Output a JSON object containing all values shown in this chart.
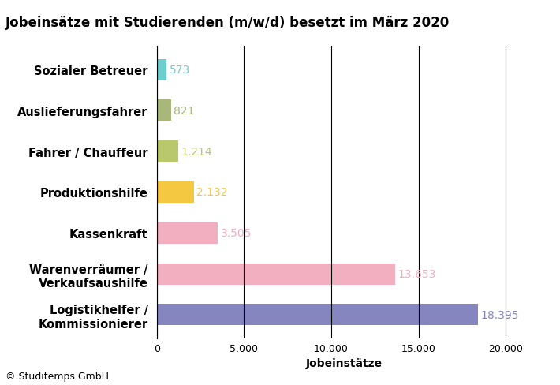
{
  "title": "Jobeinsätze mit Studierenden (m/w/d) besetzt im März 2020",
  "categories": [
    "Logistikhelfer /\nKommissionierer",
    "Warenverräumer /\nVerkaufsaushilfe",
    "Kassenkraft",
    "Produktionshilfe",
    "Fahrer / Chauffeur",
    "Auslieferungsfahrer",
    "Sozialer Betreuer"
  ],
  "values": [
    18395,
    13653,
    3505,
    2132,
    1214,
    821,
    573
  ],
  "bar_colors": [
    "#8585bf",
    "#f2afc0",
    "#f2afc0",
    "#f5c842",
    "#b8c86a",
    "#a8b87a",
    "#6ecece"
  ],
  "value_labels": [
    "18.395",
    "13.653",
    "3.505",
    "2.132",
    "1.214",
    "821",
    "573"
  ],
  "value_colors": [
    "#8585bf",
    "#f2afc0",
    "#f2afc0",
    "#f5c842",
    "#b8c86a",
    "#a8b87a",
    "#6ecece"
  ],
  "xlabel": "Jobeinstätze",
  "xlim": [
    0,
    21500
  ],
  "xticks": [
    0,
    5000,
    10000,
    15000,
    20000
  ],
  "xtick_labels": [
    "0",
    "5.000",
    "10.000",
    "15.000",
    "20.000"
  ],
  "footer": "© Studitemps GmbH",
  "background_color": "#ffffff",
  "title_fontsize": 12,
  "label_fontsize": 10.5,
  "value_fontsize": 10,
  "footer_fontsize": 9,
  "bar_height": 0.52
}
